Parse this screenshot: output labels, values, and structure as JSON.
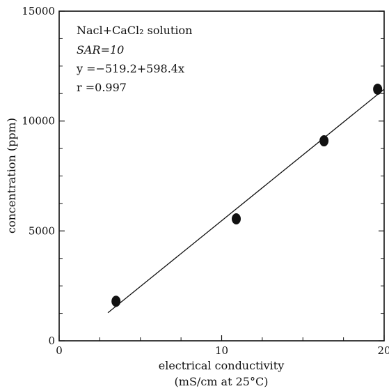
{
  "chart_data": {
    "type": "scatter",
    "xlabel_line1": "electrical conductivity",
    "xlabel_line2": "(mS/cm at 25°C)",
    "ylabel": "concentration (ppm)",
    "xlim": [
      0,
      20
    ],
    "ylim": [
      0,
      15000
    ],
    "x_ticks_labeled": [
      0,
      10,
      20
    ],
    "x_tick_labels": [
      "0",
      "10",
      "20"
    ],
    "x_ticks_minor": [
      2.5,
      5,
      7.5,
      12.5,
      15,
      17.5
    ],
    "y_ticks_labeled": [
      0,
      5000,
      10000,
      15000
    ],
    "y_tick_labels": [
      "0",
      "5000",
      "10000",
      "15000"
    ],
    "y_ticks_minor": [
      1250,
      2500,
      3750,
      6250,
      7500,
      8750,
      11250,
      12500,
      13750
    ],
    "points": [
      {
        "x": 3.5,
        "y": 1800
      },
      {
        "x": 10.9,
        "y": 5550
      },
      {
        "x": 16.3,
        "y": 9100
      },
      {
        "x": 19.6,
        "y": 11450
      }
    ],
    "fit_line": {
      "x_start": 3.0,
      "x_end": 20.0,
      "intercept": -519.2,
      "slope": 598.4
    },
    "annotations": {
      "solution": "Nacl+CaCl₂ solution",
      "sar": "SAR=10",
      "equation": "y =−519.2+598.4x",
      "r_value": "r =0.997"
    },
    "grid": false,
    "legend": "none"
  }
}
